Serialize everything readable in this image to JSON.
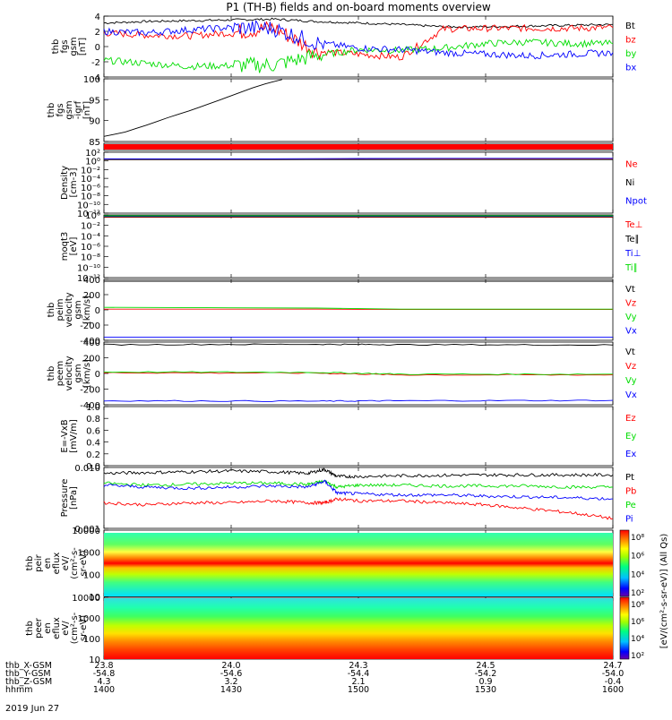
{
  "title": "P1 (TH-B) fields and on-board moments overview",
  "colors": {
    "black": "#000000",
    "red": "#ff0000",
    "green": "#00dd00",
    "blue": "#0000ff",
    "purple": "#8000a0"
  },
  "chart_data": [
    {
      "type": "line",
      "panel": "fgs",
      "ylabel": [
        "thb",
        "fgs",
        "gsm",
        "[nT]"
      ],
      "yticks": [
        "4",
        "2",
        "0",
        "-2",
        "-4"
      ],
      "ylim": [
        -4,
        4
      ],
      "xlim": [
        0,
        120
      ],
      "x": [
        0,
        10,
        20,
        30,
        40,
        50,
        60,
        70,
        80,
        90,
        100,
        110,
        120
      ],
      "series": [
        {
          "name": "Bt",
          "color": "#000000",
          "values": [
            3.1,
            3.3,
            3.4,
            3.5,
            3.6,
            3.3,
            3.1,
            2.9,
            2.6,
            2.6,
            2.7,
            2.8,
            2.9
          ]
        },
        {
          "name": "bz",
          "color": "#ff0000",
          "values": [
            1.8,
            1.5,
            1.4,
            1.8,
            2.5,
            -0.6,
            -1.0,
            -1.4,
            2.3,
            2.4,
            2.4,
            2.4,
            2.5
          ]
        },
        {
          "name": "by",
          "color": "#00dd00",
          "values": [
            -1.8,
            -2.2,
            -2.6,
            -2.5,
            -2.4,
            -1.2,
            -0.4,
            -0.5,
            -0.2,
            0.4,
            0.6,
            0.4,
            0.4
          ]
        },
        {
          "name": "bx",
          "color": "#0000ff",
          "values": [
            2.0,
            1.8,
            2.2,
            2.5,
            2.4,
            0.5,
            -0.2,
            -0.4,
            -0.8,
            -1.0,
            -1.2,
            -1.0,
            -0.8
          ]
        }
      ],
      "legend": [
        "Bt",
        "bz",
        "by",
        "bx"
      ]
    },
    {
      "type": "line",
      "panel": "fgs-igrf",
      "ylabel": [
        "thb",
        "fgs",
        "gsm",
        "-igrf",
        "[nT]"
      ],
      "yticks": [
        "100",
        "95",
        "90",
        "85"
      ],
      "ylim": [
        82,
        100.5
      ],
      "xlim": [
        0,
        120
      ],
      "series": [
        {
          "name": "",
          "color": "#000000",
          "x": [
            0,
            5,
            10,
            15,
            20,
            25,
            30,
            35,
            38,
            42
          ],
          "values": [
            83.5,
            84.8,
            86.8,
            89.0,
            91.0,
            93.2,
            95.5,
            97.8,
            99.0,
            100.3
          ]
        }
      ]
    },
    {
      "type": "line",
      "panel": "flag",
      "series": [
        {
          "name": "",
          "color": "#ff0000",
          "values": [
            1,
            1
          ]
        }
      ]
    },
    {
      "type": "line",
      "panel": "density",
      "ylabel": [
        "Density",
        "[cm-3]"
      ],
      "yticks": [
        "10²",
        "10⁰",
        "10⁻²",
        "10⁻⁴",
        "10⁻⁶",
        "10⁻⁸",
        "10⁻¹⁰",
        "10⁻¹²"
      ],
      "ylim": [
        -13,
        2
      ],
      "series": [
        {
          "name": "Ne",
          "color": "#ff0000",
          "values": [
            0.2,
            0.2,
            0.3,
            0.3
          ]
        },
        {
          "name": "Ni",
          "color": "#000000",
          "values": [
            0.2,
            0.2,
            0.2,
            0.2
          ]
        },
        {
          "name": "Npot",
          "color": "#0000ff",
          "values": [
            0.4,
            0.4,
            0.5,
            0.5
          ]
        }
      ],
      "legend": [
        "Ne",
        "Ni",
        "Npot"
      ]
    },
    {
      "type": "line",
      "panel": "temperature",
      "ylabel": [
        "moqt3",
        "[eV]"
      ],
      "yticks": [
        "10⁰",
        "10⁻²",
        "10⁻⁴",
        "10⁻⁶",
        "10⁻⁸",
        "10⁻¹⁰",
        "10⁻¹²"
      ],
      "ylim": [
        -13,
        1
      ],
      "series": [
        {
          "name": "Te⊥",
          "color": "#ff0000",
          "values": [
            0.5,
            0.5,
            0.5,
            0.5
          ]
        },
        {
          "name": "Te∥",
          "color": "#000000",
          "values": [
            0.6,
            0.6,
            0.6,
            0.6
          ]
        },
        {
          "name": "Ti⊥",
          "color": "#0000ff",
          "values": [
            0.7,
            0.7,
            0.7,
            0.7
          ]
        },
        {
          "name": "Ti∥",
          "color": "#00dd00",
          "values": [
            0.8,
            0.8,
            0.8,
            0.8
          ]
        }
      ],
      "legend": [
        "Te⊥",
        "Te∥",
        "Ti⊥",
        "Ti∥"
      ]
    },
    {
      "type": "line",
      "panel": "peim-velocity",
      "ylabel": [
        "thb",
        "peim",
        "velocity",
        "gsm",
        "[km/s]"
      ],
      "yticks": [
        "400",
        "200",
        "0",
        "-200",
        "-400"
      ],
      "ylim": [
        -440,
        420
      ],
      "x": [
        0,
        50,
        70,
        120
      ],
      "series": [
        {
          "name": "Vt",
          "color": "#000000",
          "values": [
            395,
            395,
            395,
            395
          ]
        },
        {
          "name": "Vz",
          "color": "#ff0000",
          "values": [
            0,
            0,
            -5,
            -5
          ]
        },
        {
          "name": "Vy",
          "color": "#00dd00",
          "values": [
            25,
            15,
            0,
            0
          ]
        },
        {
          "name": "Vx",
          "color": "#0000ff",
          "values": [
            -395,
            -395,
            -395,
            -395
          ]
        }
      ],
      "legend": [
        "Vt",
        "Vz",
        "Vy",
        "Vx"
      ]
    },
    {
      "type": "line",
      "panel": "peem-velocity",
      "ylabel": [
        "thb",
        "peem",
        "velocity",
        "gsm",
        "[km/s]"
      ],
      "yticks": [
        "400",
        "200",
        "0",
        "-200",
        "-400"
      ],
      "ylim": [
        -440,
        420
      ],
      "x": [
        0,
        50,
        70,
        120
      ],
      "series": [
        {
          "name": "Vt",
          "color": "#000000",
          "values": [
            385,
            390,
            385,
            380
          ]
        },
        {
          "name": "Vz",
          "color": "#ff0000",
          "values": [
            0,
            -5,
            -30,
            -30
          ]
        },
        {
          "name": "Vy",
          "color": "#00dd00",
          "values": [
            10,
            5,
            -20,
            -20
          ]
        },
        {
          "name": "Vx",
          "color": "#0000ff",
          "values": [
            -385,
            -390,
            -385,
            -380
          ]
        }
      ],
      "legend": [
        "Vt",
        "Vz",
        "Vy",
        "Vx"
      ]
    },
    {
      "type": "line",
      "panel": "efield",
      "ylabel": [
        "E=-VxB",
        "[mV/m]"
      ],
      "yticks": [
        "1.0",
        "0.8",
        "0.6",
        "0.4",
        "0.2",
        "0.0"
      ],
      "ylim": [
        0,
        1
      ],
      "series": [],
      "legend": [
        "Ez",
        "Ey",
        "Ex"
      ],
      "legend_colors": [
        "#ff0000",
        "#00dd00",
        "#0000ff"
      ]
    },
    {
      "type": "line",
      "panel": "pressure",
      "ylabel": [
        "Pressure",
        "[nPa]"
      ],
      "yticks": [
        "0.010",
        "0.001"
      ],
      "ylim_log10": [
        -3.1,
        -1.55
      ],
      "x": [
        0,
        10,
        20,
        30,
        40,
        48,
        52,
        55,
        60,
        70,
        80,
        90,
        100,
        110,
        120
      ],
      "series": [
        {
          "name": "Pt",
          "color": "#000000",
          "values": [
            -1.7,
            -1.68,
            -1.66,
            -1.64,
            -1.66,
            -1.7,
            -1.6,
            -1.78,
            -1.78,
            -1.76,
            -1.75,
            -1.74,
            -1.74,
            -1.74,
            -1.74
          ]
        },
        {
          "name": "Pb",
          "color": "#ff0000",
          "values": [
            -2.45,
            -2.5,
            -2.45,
            -2.45,
            -2.4,
            -2.45,
            -2.45,
            -2.35,
            -2.4,
            -2.4,
            -2.45,
            -2.5,
            -2.6,
            -2.7,
            -2.85
          ]
        },
        {
          "name": "Pe",
          "color": "#00dd00",
          "values": [
            -1.95,
            -2.0,
            -1.98,
            -1.95,
            -1.95,
            -1.98,
            -1.9,
            -2.05,
            -2.0,
            -2.0,
            -2.02,
            -2.02,
            -2.02,
            -2.05,
            -2.05
          ]
        },
        {
          "name": "Pi",
          "color": "#0000ff",
          "values": [
            -2.0,
            -2.05,
            -2.08,
            -2.05,
            -2.02,
            -2.05,
            -1.9,
            -2.2,
            -2.22,
            -2.25,
            -2.25,
            -2.28,
            -2.3,
            -2.32,
            -2.35
          ]
        }
      ],
      "legend": [
        "Pt",
        "Pb",
        "Pe",
        "Pi"
      ]
    },
    {
      "type": "heatmap",
      "panel": "peir-eflux",
      "ylabel": [
        "thb",
        "peir",
        "en",
        "eflux",
        "eV/",
        "(cm²-s-",
        "sr-eV)"
      ],
      "yticks": [
        "10000",
        "1000",
        "100",
        "10"
      ],
      "note": "ion energy flux spectrogram"
    },
    {
      "type": "heatmap",
      "panel": "peer-eflux",
      "ylabel": [
        "thb",
        "peer",
        "en",
        "eflux",
        "eV/",
        "(cm²-s-",
        "sr-eV)"
      ],
      "yticks": [
        "10000",
        "1000",
        "100",
        "10"
      ],
      "note": "electron energy flux spectrogram"
    }
  ],
  "colorbar": {
    "ticks1": [
      "10⁸",
      "10⁶",
      "10⁴",
      "10²"
    ],
    "ticks2": [
      "10⁸",
      "10⁶",
      "10⁴",
      "10²"
    ],
    "label": "[eV/(cm²-s-sr-eV)] (All Qs)"
  },
  "xaxis": {
    "rows": [
      {
        "label": "thb_X-GSM",
        "values": [
          "23.8",
          "24.0",
          "24.3",
          "24.5",
          "24.7"
        ]
      },
      {
        "label": "thb_Y-GSM",
        "values": [
          "-54.8",
          "-54.6",
          "-54.4",
          "-54.2",
          "-54.0"
        ]
      },
      {
        "label": "thb_Z-GSM",
        "values": [
          "4.3",
          "3.2",
          "2.1",
          "0.9",
          "-0.4"
        ]
      },
      {
        "label": "hhmm",
        "values": [
          "1400",
          "1430",
          "1500",
          "1530",
          "1600"
        ]
      }
    ],
    "date": "2019 Jun 27"
  }
}
